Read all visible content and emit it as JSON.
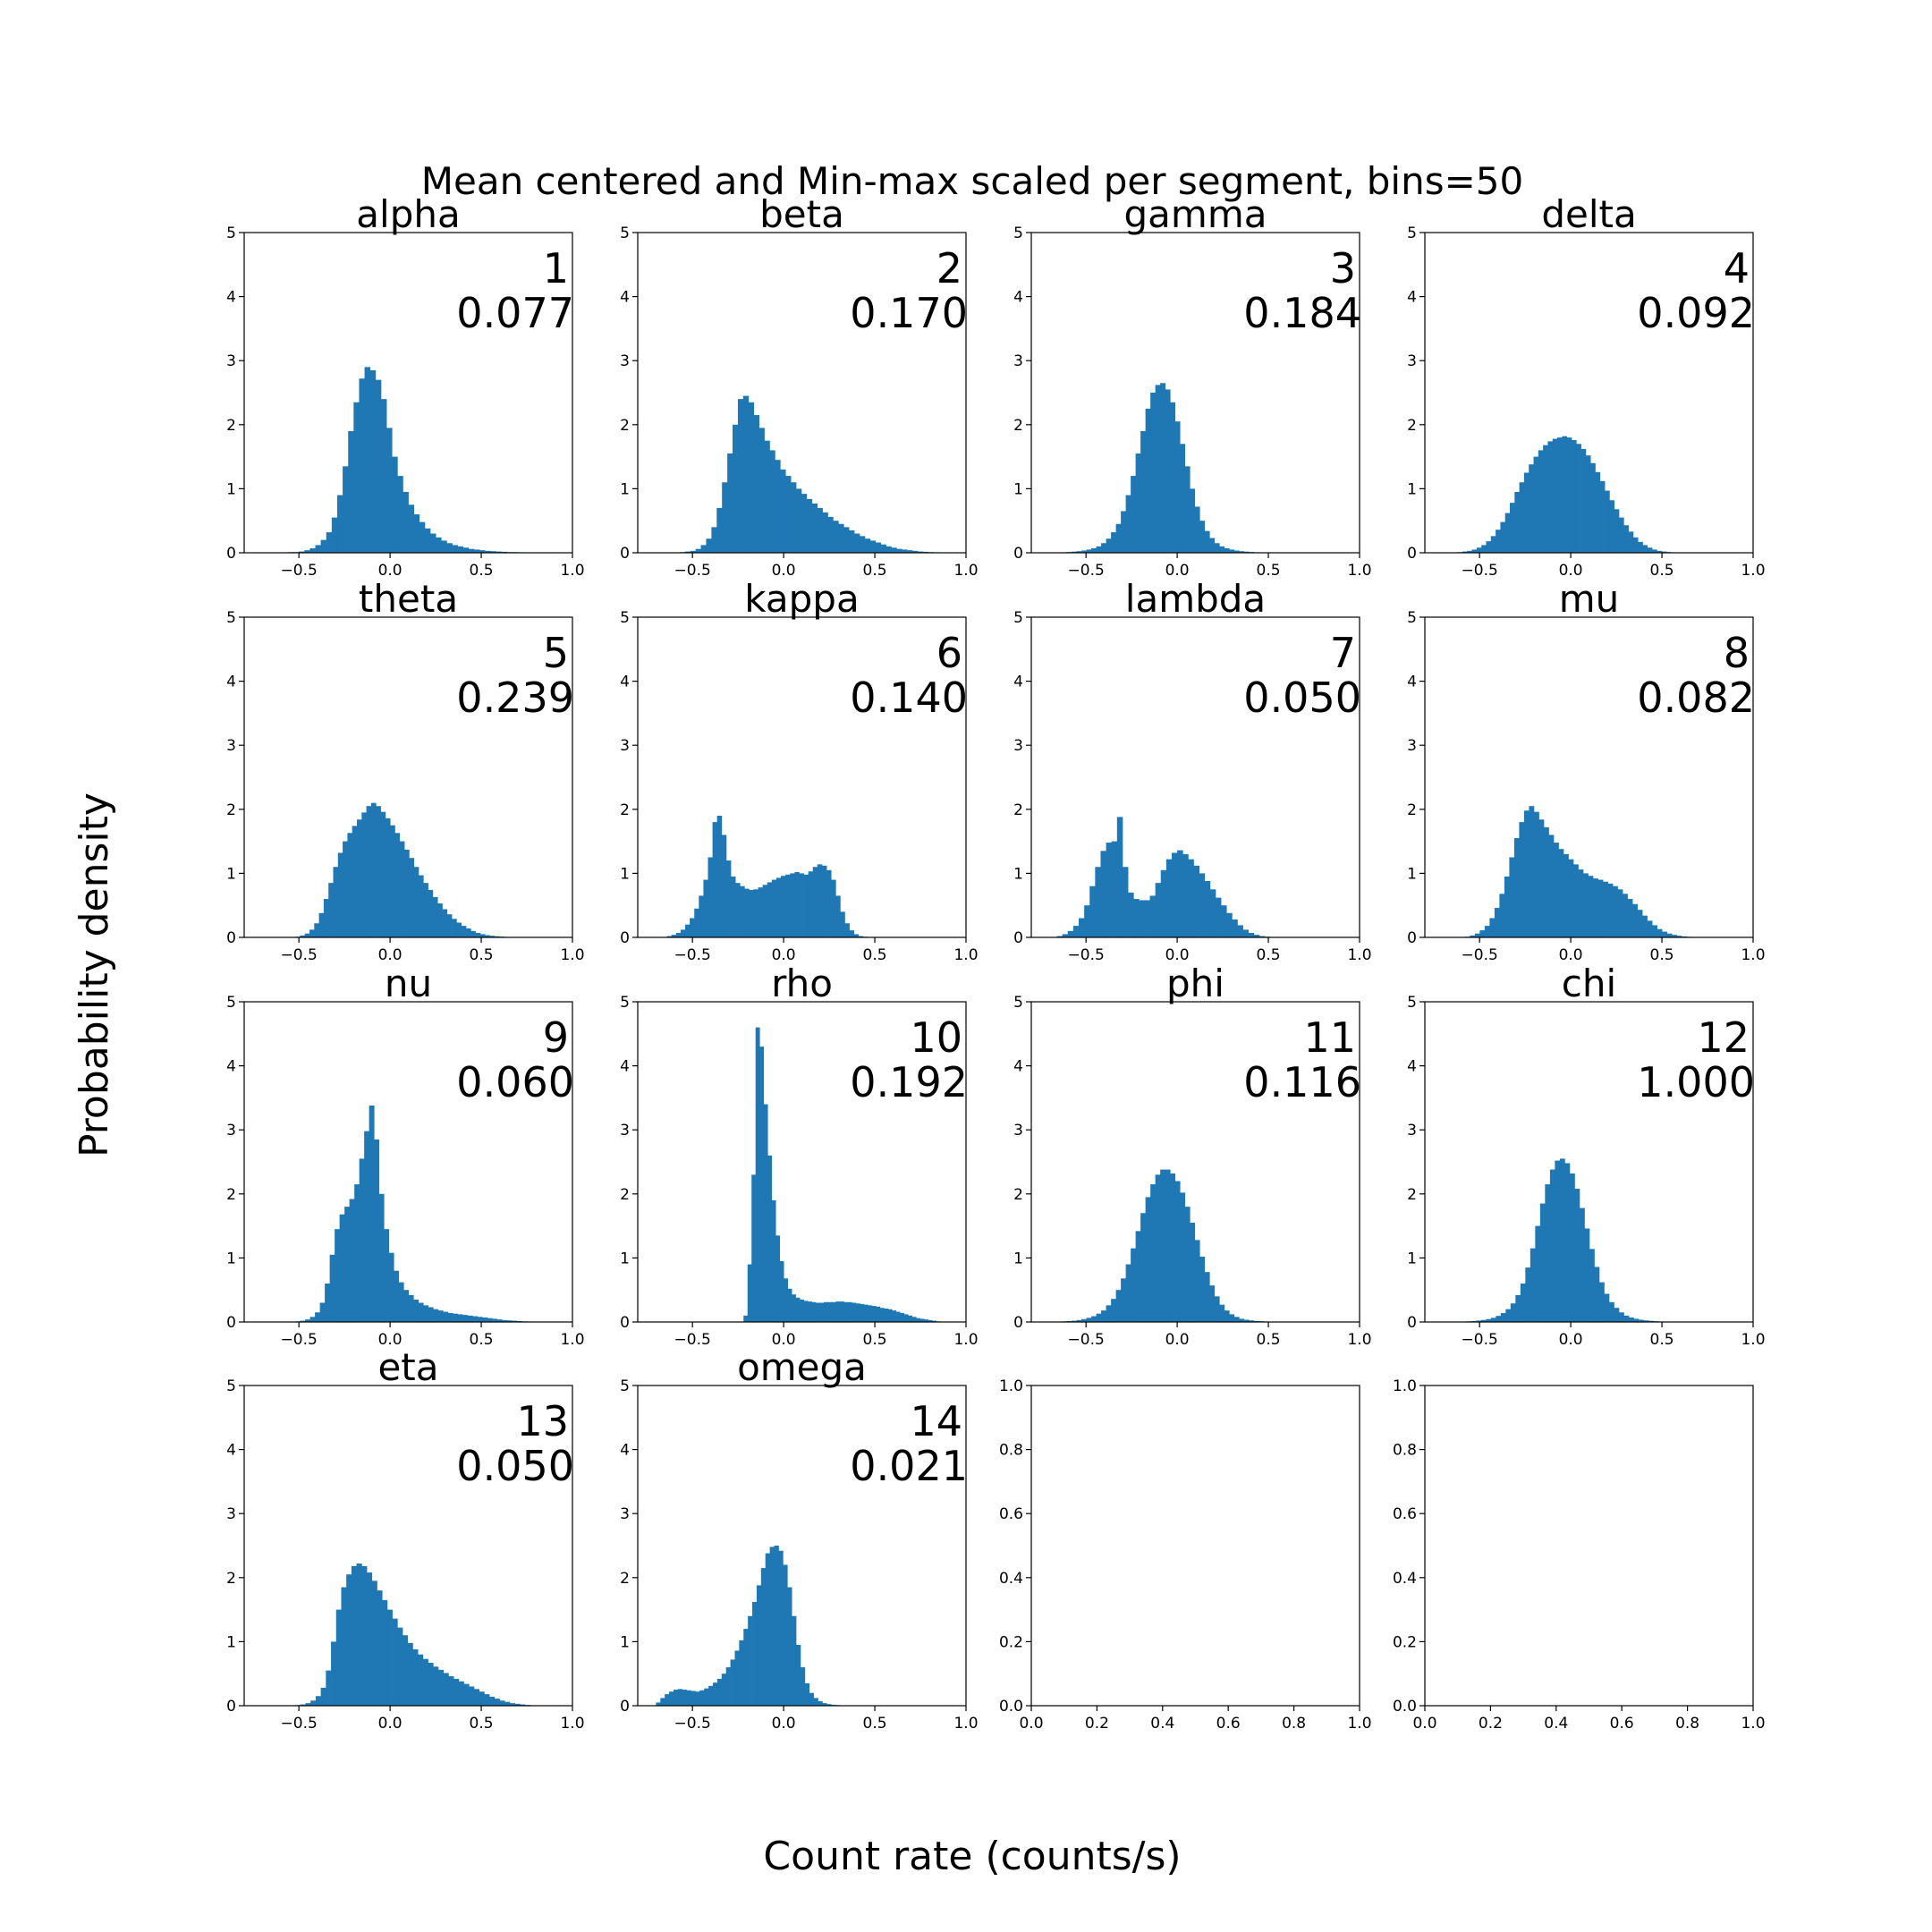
{
  "figure": {
    "title": "Mean centered and Min-max scaled per segment, bins=50",
    "xlabel": "Count rate (counts/s)",
    "ylabel": "Probability density",
    "bar_color": "#1f77b4"
  },
  "chart_data": [
    {
      "type": "histogram",
      "title": "alpha",
      "annotation_index": "1",
      "annotation_value": "0.077",
      "xlim": [
        -0.8,
        1.0
      ],
      "ylim": [
        0,
        5
      ],
      "xticks": [
        "−0.5",
        "0.0",
        "0.5",
        "1.0"
      ],
      "yticks": [
        "0",
        "1",
        "2",
        "3",
        "4",
        "5"
      ],
      "bins_start": -0.56,
      "bin_width": 0.03,
      "values": [
        0.01,
        0.01,
        0.02,
        0.04,
        0.07,
        0.12,
        0.2,
        0.32,
        0.55,
        0.9,
        1.35,
        1.9,
        2.35,
        2.72,
        2.9,
        2.85,
        2.7,
        2.4,
        1.95,
        1.5,
        1.2,
        0.95,
        0.75,
        0.6,
        0.48,
        0.38,
        0.3,
        0.24,
        0.19,
        0.15,
        0.12,
        0.1,
        0.08,
        0.06,
        0.05,
        0.04,
        0.03,
        0.025,
        0.02,
        0.015,
        0.01,
        0.01,
        0.008,
        0.006,
        0.005,
        0.004,
        0.003,
        0.002,
        0.002,
        0.001
      ]
    },
    {
      "type": "histogram",
      "title": "beta",
      "annotation_index": "2",
      "annotation_value": "0.170",
      "xlim": [
        -0.8,
        1.0
      ],
      "ylim": [
        0,
        5
      ],
      "xticks": [
        "−0.5",
        "0.0",
        "0.5",
        "1.0"
      ],
      "yticks": [
        "0",
        "1",
        "2",
        "3",
        "4",
        "5"
      ],
      "bins_start": -0.57,
      "bin_width": 0.029,
      "values": [
        0.01,
        0.02,
        0.03,
        0.06,
        0.12,
        0.22,
        0.4,
        0.7,
        1.1,
        1.55,
        2.0,
        2.4,
        2.45,
        2.35,
        2.15,
        1.95,
        1.75,
        1.6,
        1.45,
        1.3,
        1.2,
        1.1,
        1.0,
        0.92,
        0.84,
        0.77,
        0.7,
        0.63,
        0.56,
        0.5,
        0.45,
        0.4,
        0.35,
        0.3,
        0.26,
        0.22,
        0.19,
        0.16,
        0.13,
        0.1,
        0.08,
        0.06,
        0.05,
        0.04,
        0.03,
        0.02,
        0.015,
        0.01,
        0.008,
        0.005
      ]
    },
    {
      "type": "histogram",
      "title": "gamma",
      "annotation_index": "3",
      "annotation_value": "0.184",
      "xlim": [
        -0.8,
        1.0
      ],
      "ylim": [
        0,
        5
      ],
      "xticks": [
        "−0.5",
        "0.0",
        "0.5",
        "1.0"
      ],
      "yticks": [
        "0",
        "1",
        "2",
        "3",
        "4",
        "5"
      ],
      "bins_start": -0.66,
      "bin_width": 0.027,
      "values": [
        0.005,
        0.008,
        0.012,
        0.018,
        0.025,
        0.035,
        0.05,
        0.07,
        0.1,
        0.15,
        0.22,
        0.32,
        0.45,
        0.65,
        0.9,
        1.2,
        1.55,
        1.9,
        2.25,
        2.5,
        2.62,
        2.65,
        2.55,
        2.35,
        2.05,
        1.7,
        1.35,
        1.0,
        0.72,
        0.5,
        0.34,
        0.23,
        0.15,
        0.1,
        0.07,
        0.05,
        0.035,
        0.025,
        0.018,
        0.012,
        0.008,
        0.005,
        0.004,
        0.003,
        0.002,
        0.001,
        0.001,
        0.001,
        0.0,
        0.0
      ]
    },
    {
      "type": "histogram",
      "title": "delta",
      "annotation_index": "4",
      "annotation_value": "0.092",
      "xlim": [
        -0.8,
        1.0
      ],
      "ylim": [
        0,
        5
      ],
      "xticks": [
        "−0.5",
        "0.0",
        "0.5",
        "1.0"
      ],
      "yticks": [
        "0",
        "1",
        "2",
        "3",
        "4",
        "5"
      ],
      "bins_start": -0.62,
      "bin_width": 0.026,
      "values": [
        0.01,
        0.02,
        0.03,
        0.05,
        0.08,
        0.12,
        0.18,
        0.26,
        0.36,
        0.48,
        0.62,
        0.78,
        0.95,
        1.1,
        1.25,
        1.38,
        1.5,
        1.6,
        1.68,
        1.74,
        1.78,
        1.8,
        1.82,
        1.8,
        1.76,
        1.7,
        1.62,
        1.52,
        1.4,
        1.26,
        1.12,
        0.97,
        0.82,
        0.68,
        0.55,
        0.43,
        0.33,
        0.24,
        0.17,
        0.12,
        0.08,
        0.05,
        0.03,
        0.02,
        0.012,
        0.007,
        0.004,
        0.002,
        0.001,
        0.001
      ]
    },
    {
      "type": "histogram",
      "title": "theta",
      "annotation_index": "5",
      "annotation_value": "0.239",
      "xlim": [
        -0.8,
        1.0
      ],
      "ylim": [
        0,
        5
      ],
      "xticks": [
        "−0.5",
        "0.0",
        "0.5",
        "1.0"
      ],
      "yticks": [
        "0",
        "1",
        "2",
        "3",
        "4",
        "5"
      ],
      "bins_start": -0.52,
      "bin_width": 0.026,
      "values": [
        0.01,
        0.03,
        0.06,
        0.12,
        0.22,
        0.38,
        0.6,
        0.85,
        1.1,
        1.32,
        1.5,
        1.63,
        1.74,
        1.84,
        1.95,
        2.05,
        2.1,
        2.05,
        1.96,
        1.86,
        1.75,
        1.63,
        1.5,
        1.37,
        1.24,
        1.1,
        0.97,
        0.85,
        0.74,
        0.63,
        0.53,
        0.44,
        0.36,
        0.29,
        0.23,
        0.18,
        0.14,
        0.1,
        0.07,
        0.05,
        0.035,
        0.025,
        0.018,
        0.012,
        0.008,
        0.005,
        0.003,
        0.002,
        0.001,
        0.001
      ]
    },
    {
      "type": "histogram",
      "title": "kappa",
      "annotation_index": "6",
      "annotation_value": "0.140",
      "xlim": [
        -0.8,
        1.0
      ],
      "ylim": [
        0,
        5
      ],
      "xticks": [
        "−0.5",
        "0.0",
        "0.5",
        "1.0"
      ],
      "yticks": [
        "0",
        "1",
        "2",
        "3",
        "4",
        "5"
      ],
      "bins_start": -0.64,
      "bin_width": 0.025,
      "values": [
        0.02,
        0.04,
        0.07,
        0.12,
        0.2,
        0.3,
        0.45,
        0.65,
        0.9,
        1.25,
        1.8,
        1.9,
        1.6,
        1.2,
        0.95,
        0.85,
        0.8,
        0.76,
        0.74,
        0.75,
        0.78,
        0.82,
        0.86,
        0.9,
        0.93,
        0.96,
        0.98,
        1.0,
        1.02,
        1.0,
        0.98,
        1.03,
        1.1,
        1.14,
        1.12,
        1.05,
        0.9,
        0.65,
        0.4,
        0.22,
        0.11,
        0.05,
        0.02,
        0.01,
        0.005,
        0.003,
        0.002,
        0.001,
        0.001,
        0.0
      ]
    },
    {
      "type": "histogram",
      "title": "lambda",
      "annotation_index": "7",
      "annotation_value": "0.050",
      "xlim": [
        -0.8,
        1.0
      ],
      "ylim": [
        0,
        5
      ],
      "xticks": [
        "−0.5",
        "0.0",
        "0.5",
        "1.0"
      ],
      "yticks": [
        "0",
        "1",
        "2",
        "3",
        "4",
        "5"
      ],
      "bins_start": -0.66,
      "bin_width": 0.03,
      "values": [
        0.02,
        0.05,
        0.1,
        0.18,
        0.3,
        0.5,
        0.8,
        1.1,
        1.35,
        1.48,
        1.5,
        1.88,
        1.1,
        0.7,
        0.6,
        0.58,
        0.58,
        0.65,
        0.85,
        1.05,
        1.22,
        1.32,
        1.36,
        1.3,
        1.22,
        1.12,
        1.0,
        0.88,
        0.75,
        0.62,
        0.5,
        0.38,
        0.28,
        0.19,
        0.12,
        0.07,
        0.04,
        0.02,
        0.01,
        0.005,
        0.003,
        0.002,
        0.001,
        0.001,
        0.0,
        0.0,
        0.0,
        0.0,
        0.0,
        0.0
      ]
    },
    {
      "type": "histogram",
      "title": "mu",
      "annotation_index": "8",
      "annotation_value": "0.082",
      "xlim": [
        -0.8,
        1.0
      ],
      "ylim": [
        0,
        5
      ],
      "xticks": [
        "−0.5",
        "0.0",
        "0.5",
        "1.0"
      ],
      "yticks": [
        "0",
        "1",
        "2",
        "3",
        "4",
        "5"
      ],
      "bins_start": -0.58,
      "bin_width": 0.027,
      "values": [
        0.01,
        0.03,
        0.06,
        0.11,
        0.18,
        0.3,
        0.46,
        0.68,
        0.95,
        1.25,
        1.55,
        1.8,
        1.98,
        2.05,
        1.96,
        1.84,
        1.72,
        1.6,
        1.48,
        1.38,
        1.3,
        1.22,
        1.14,
        1.06,
        1.0,
        0.96,
        0.92,
        0.9,
        0.87,
        0.84,
        0.8,
        0.75,
        0.68,
        0.6,
        0.52,
        0.43,
        0.34,
        0.26,
        0.19,
        0.13,
        0.09,
        0.06,
        0.04,
        0.025,
        0.015,
        0.009,
        0.005,
        0.003,
        0.002,
        0.001
      ]
    },
    {
      "type": "histogram",
      "title": "nu",
      "annotation_index": "9",
      "annotation_value": "0.060",
      "xlim": [
        -0.8,
        1.0
      ],
      "ylim": [
        0,
        5
      ],
      "xticks": [
        "−0.5",
        "0.0",
        "0.5",
        "1.0"
      ],
      "yticks": [
        "0",
        "1",
        "2",
        "3",
        "4",
        "5"
      ],
      "bins_start": -0.52,
      "bin_width": 0.027,
      "values": [
        0.01,
        0.02,
        0.04,
        0.08,
        0.15,
        0.3,
        0.6,
        1.05,
        1.45,
        1.68,
        1.8,
        1.92,
        2.15,
        2.55,
        2.98,
        3.38,
        2.85,
        2.0,
        1.45,
        1.08,
        0.8,
        0.62,
        0.5,
        0.42,
        0.35,
        0.3,
        0.26,
        0.23,
        0.2,
        0.18,
        0.16,
        0.14,
        0.13,
        0.12,
        0.11,
        0.1,
        0.09,
        0.08,
        0.07,
        0.06,
        0.05,
        0.04,
        0.03,
        0.025,
        0.02,
        0.015,
        0.01,
        0.008,
        0.005,
        0.003
      ]
    },
    {
      "type": "histogram",
      "title": "rho",
      "annotation_index": "10",
      "annotation_value": "0.192",
      "xlim": [
        -0.8,
        1.0
      ],
      "ylim": [
        0,
        5
      ],
      "xticks": [
        "−0.5",
        "0.0",
        "0.5",
        "1.0"
      ],
      "yticks": [
        "0",
        "1",
        "2",
        "3",
        "4",
        "5"
      ],
      "bins_start": -0.22,
      "bin_width": 0.022,
      "values": [
        0.1,
        0.9,
        2.3,
        4.6,
        4.3,
        3.4,
        2.6,
        1.9,
        1.35,
        0.95,
        0.68,
        0.52,
        0.43,
        0.38,
        0.35,
        0.33,
        0.32,
        0.31,
        0.3,
        0.3,
        0.31,
        0.31,
        0.31,
        0.32,
        0.32,
        0.31,
        0.31,
        0.3,
        0.29,
        0.28,
        0.27,
        0.26,
        0.25,
        0.24,
        0.22,
        0.21,
        0.2,
        0.18,
        0.16,
        0.14,
        0.12,
        0.1,
        0.08,
        0.06,
        0.05,
        0.04,
        0.03,
        0.02,
        0.01,
        0.005
      ]
    },
    {
      "type": "histogram",
      "title": "phi",
      "annotation_index": "11",
      "annotation_value": "0.116",
      "xlim": [
        -0.8,
        1.0
      ],
      "ylim": [
        0,
        5
      ],
      "xticks": [
        "−0.5",
        "0.0",
        "0.5",
        "1.0"
      ],
      "yticks": [
        "0",
        "1",
        "2",
        "3",
        "4",
        "5"
      ],
      "bins_start": -0.66,
      "bin_width": 0.027,
      "values": [
        0.005,
        0.01,
        0.015,
        0.02,
        0.03,
        0.045,
        0.065,
        0.09,
        0.13,
        0.18,
        0.26,
        0.36,
        0.5,
        0.68,
        0.9,
        1.15,
        1.42,
        1.7,
        1.95,
        2.15,
        2.3,
        2.38,
        2.38,
        2.32,
        2.2,
        2.02,
        1.8,
        1.55,
        1.28,
        1.02,
        0.78,
        0.57,
        0.4,
        0.27,
        0.18,
        0.12,
        0.08,
        0.05,
        0.035,
        0.025,
        0.017,
        0.012,
        0.008,
        0.005,
        0.003,
        0.002,
        0.001,
        0.001,
        0.0,
        0.0
      ]
    },
    {
      "type": "histogram",
      "title": "chi",
      "annotation_index": "12",
      "annotation_value": "1.000",
      "xlim": [
        -0.8,
        1.0
      ],
      "ylim": [
        0,
        5
      ],
      "xticks": [
        "−0.5",
        "0.0",
        "0.5",
        "1.0"
      ],
      "yticks": [
        "0",
        "1",
        "2",
        "3",
        "4",
        "5"
      ],
      "bins_start": -0.6,
      "bin_width": 0.027,
      "values": [
        0.005,
        0.01,
        0.015,
        0.022,
        0.032,
        0.045,
        0.065,
        0.095,
        0.14,
        0.2,
        0.29,
        0.42,
        0.6,
        0.85,
        1.15,
        1.5,
        1.85,
        2.15,
        2.38,
        2.52,
        2.55,
        2.48,
        2.32,
        2.08,
        1.78,
        1.46,
        1.14,
        0.86,
        0.62,
        0.44,
        0.31,
        0.22,
        0.15,
        0.1,
        0.07,
        0.05,
        0.035,
        0.025,
        0.018,
        0.012,
        0.008,
        0.005,
        0.003,
        0.002,
        0.001,
        0.001,
        0.0,
        0.0,
        0.0,
        0.0
      ]
    },
    {
      "type": "histogram",
      "title": "eta",
      "annotation_index": "13",
      "annotation_value": "0.050",
      "xlim": [
        -0.8,
        1.0
      ],
      "ylim": [
        0,
        5
      ],
      "xticks": [
        "−0.5",
        "0.0",
        "0.5",
        "1.0"
      ],
      "yticks": [
        "0",
        "1",
        "2",
        "3",
        "4",
        "5"
      ],
      "bins_start": -0.52,
      "bin_width": 0.028,
      "values": [
        0.01,
        0.02,
        0.04,
        0.08,
        0.15,
        0.28,
        0.55,
        1.0,
        1.5,
        1.85,
        2.05,
        2.18,
        2.22,
        2.18,
        2.08,
        1.95,
        1.8,
        1.65,
        1.5,
        1.36,
        1.22,
        1.1,
        0.98,
        0.88,
        0.8,
        0.73,
        0.67,
        0.61,
        0.56,
        0.51,
        0.46,
        0.42,
        0.38,
        0.34,
        0.3,
        0.26,
        0.22,
        0.18,
        0.14,
        0.11,
        0.08,
        0.06,
        0.04,
        0.03,
        0.02,
        0.012,
        0.008,
        0.005,
        0.003,
        0.002
      ]
    },
    {
      "type": "histogram",
      "title": "omega",
      "annotation_index": "14",
      "annotation_value": "0.021",
      "xlim": [
        -0.8,
        1.0
      ],
      "ylim": [
        0,
        5
      ],
      "xticks": [
        "−0.5",
        "0.0",
        "0.5",
        "1.0"
      ],
      "yticks": [
        "0",
        "1",
        "2",
        "3",
        "4",
        "5"
      ],
      "bins_start": -0.7,
      "bin_width": 0.024,
      "values": [
        0.05,
        0.12,
        0.18,
        0.22,
        0.25,
        0.26,
        0.25,
        0.24,
        0.23,
        0.22,
        0.24,
        0.27,
        0.31,
        0.36,
        0.42,
        0.5,
        0.6,
        0.72,
        0.86,
        1.02,
        1.2,
        1.4,
        1.62,
        1.88,
        2.15,
        2.38,
        2.48,
        2.5,
        2.42,
        2.2,
        1.85,
        1.4,
        0.95,
        0.6,
        0.35,
        0.2,
        0.12,
        0.07,
        0.04,
        0.025,
        0.015,
        0.01,
        0.006,
        0.004,
        0.002,
        0.001,
        0.001,
        0.0,
        0.0,
        0.0
      ]
    },
    {
      "type": "empty",
      "xlim": [
        0,
        1
      ],
      "ylim": [
        0,
        1
      ],
      "xticks": [
        "0.0",
        "0.2",
        "0.4",
        "0.6",
        "0.8",
        "1.0"
      ],
      "yticks": [
        "0.0",
        "0.2",
        "0.4",
        "0.6",
        "0.8",
        "1.0"
      ]
    },
    {
      "type": "empty",
      "xlim": [
        0,
        1
      ],
      "ylim": [
        0,
        1
      ],
      "xticks": [
        "0.0",
        "0.2",
        "0.4",
        "0.6",
        "0.8",
        "1.0"
      ],
      "yticks": [
        "0.0",
        "0.2",
        "0.4",
        "0.6",
        "0.8",
        "1.0"
      ]
    }
  ]
}
